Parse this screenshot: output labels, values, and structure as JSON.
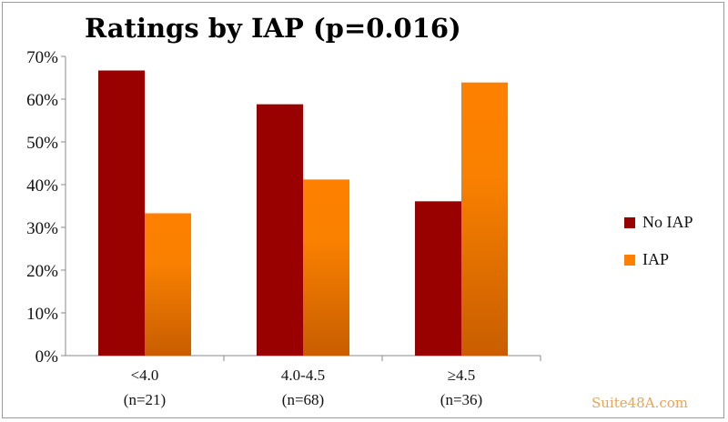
{
  "chart_data": {
    "type": "bar",
    "title": "Ratings by IAP (p=0.016)",
    "categories": [
      "<4.0",
      "4.0-4.5",
      "≥4.5"
    ],
    "category_sublabels": [
      "(n=21)",
      "(n=68)",
      "(n=36)"
    ],
    "series": [
      {
        "name": "No IAP",
        "values": [
          66.7,
          58.8,
          36.1
        ],
        "color": "#990000"
      },
      {
        "name": "IAP",
        "values": [
          33.3,
          41.2,
          63.9
        ],
        "color": "#ff8000"
      }
    ],
    "yticks": [
      "0%",
      "10%",
      "20%",
      "30%",
      "40%",
      "50%",
      "60%",
      "70%"
    ],
    "ylim": [
      0,
      70
    ],
    "xlabel": "",
    "ylabel": "",
    "grid": false,
    "legend": "right"
  },
  "watermark": "Suite48A.com"
}
